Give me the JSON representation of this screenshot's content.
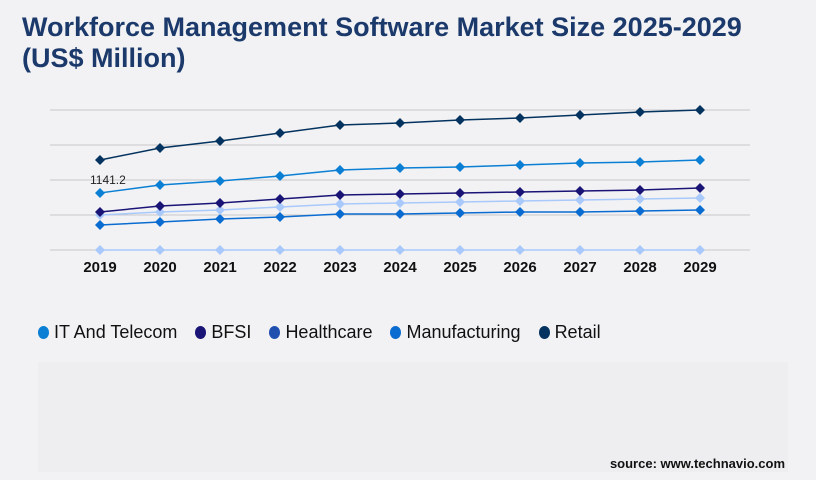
{
  "chart_data": {
    "type": "line",
    "title": "Workforce Management Software Market Size 2025-2029 (US$ Million)",
    "x": [
      "2019",
      "2020",
      "2021",
      "2022",
      "2023",
      "2024",
      "2025",
      "2026",
      "2027",
      "2028",
      "2029"
    ],
    "ylim": [
      0,
      2800
    ],
    "grid": true,
    "legend_placement": "bottom",
    "annotation": "1141.2",
    "series": [
      {
        "name": "Retail",
        "color": "#04335f",
        "values": [
          1800,
          2040,
          2180,
          2340,
          2500,
          2540,
          2600,
          2640,
          2700,
          2760,
          2800
        ]
      },
      {
        "name": "IT And Telecom",
        "color": "#0a7fd4",
        "values": [
          1141.2,
          1300,
          1380,
          1480,
          1600,
          1640,
          1660,
          1700,
          1740,
          1760,
          1800
        ]
      },
      {
        "name": "BFSI",
        "color": "#1b1477",
        "values": [
          760,
          880,
          940,
          1020,
          1100,
          1120,
          1140,
          1160,
          1180,
          1200,
          1240
        ]
      },
      {
        "color": "#a9c9fb",
        "values": [
          700,
          760,
          800,
          860,
          920,
          940,
          960,
          980,
          1000,
          1020,
          1040
        ]
      },
      {
        "name": "Manufacturing",
        "color": "#0a6cd0",
        "values": [
          500,
          560,
          620,
          660,
          720,
          720,
          740,
          760,
          760,
          780,
          800
        ]
      },
      {
        "color": "#a9c9fb",
        "values": [
          0,
          0,
          0,
          0,
          0,
          0,
          0,
          0,
          0,
          0,
          0
        ]
      }
    ],
    "legend": [
      {
        "name": "IT And Telecom",
        "color": "#0a7fd4"
      },
      {
        "name": "BFSI",
        "color": "#1b1477"
      },
      {
        "name": "Healthcare",
        "color": "#1f4faf"
      },
      {
        "name": "Manufacturing",
        "color": "#0a6cd0"
      },
      {
        "name": "Retail",
        "color": "#04335f"
      }
    ]
  },
  "source": "source: www.technavio.com"
}
